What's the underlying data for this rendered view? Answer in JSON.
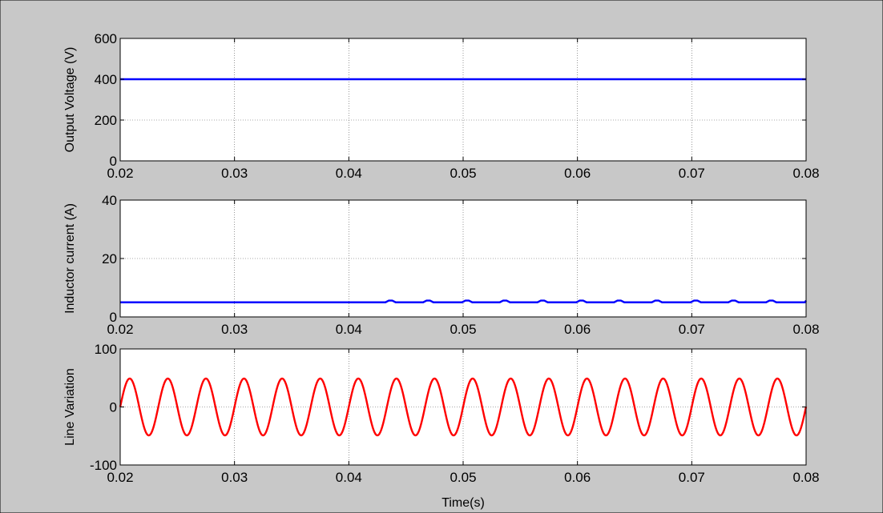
{
  "figure": {
    "background": "#c8c8c8",
    "axes_background": "#ffffff",
    "grid_color": "#555555"
  },
  "chart_data": [
    {
      "type": "line",
      "ylabel": "Output Voltage (V)",
      "xlabel": "",
      "xlim": [
        0.02,
        0.08
      ],
      "ylim": [
        0,
        600
      ],
      "x_ticks": [
        "0.02",
        "0.03",
        "0.04",
        "0.05",
        "0.06",
        "0.07",
        "0.08"
      ],
      "y_ticks": [
        "0",
        "200",
        "400",
        "600"
      ],
      "grid": true,
      "series": [
        {
          "color": "#0000ff",
          "x": [
            0.02,
            0.08
          ],
          "y": [
            400,
            400
          ]
        }
      ]
    },
    {
      "type": "line",
      "ylabel": "Inductor current (A)",
      "xlabel": "",
      "xlim": [
        0.02,
        0.08
      ],
      "ylim": [
        0,
        40
      ],
      "x_ticks": [
        "0.02",
        "0.03",
        "0.04",
        "0.05",
        "0.06",
        "0.07",
        "0.08"
      ],
      "y_ticks": [
        "0",
        "20",
        "40"
      ],
      "grid": true,
      "series": [
        {
          "color": "#0000ff",
          "x": [
            0.02,
            0.0404,
            0.0406,
            0.0432,
            0.0435,
            0.0438,
            0.0441,
            0.0465,
            0.0468,
            0.0471,
            0.0474,
            0.0499,
            0.0502,
            0.0505,
            0.0508,
            0.0532,
            0.0535,
            0.0538,
            0.0541,
            0.0565,
            0.0568,
            0.0571,
            0.0574,
            0.0599,
            0.0602,
            0.0605,
            0.0608,
            0.0632,
            0.0635,
            0.0638,
            0.0641,
            0.0665,
            0.0668,
            0.0671,
            0.0674,
            0.0699,
            0.0702,
            0.0705,
            0.0708,
            0.0732,
            0.0735,
            0.0738,
            0.0741,
            0.0765,
            0.0768,
            0.0771,
            0.0774,
            0.0799,
            0.08
          ],
          "y": [
            5.0,
            5.0,
            5.0,
            5.0,
            5.6,
            5.6,
            5.0,
            5.0,
            5.6,
            5.6,
            5.0,
            5.0,
            5.6,
            5.6,
            5.0,
            5.0,
            5.6,
            5.6,
            5.0,
            5.0,
            5.6,
            5.6,
            5.0,
            5.0,
            5.6,
            5.6,
            5.0,
            5.0,
            5.6,
            5.6,
            5.0,
            5.0,
            5.6,
            5.6,
            5.0,
            5.0,
            5.6,
            5.6,
            5.0,
            5.0,
            5.6,
            5.6,
            5.0,
            5.0,
            5.6,
            5.6,
            5.0,
            5.0,
            5.6
          ]
        }
      ]
    },
    {
      "type": "line",
      "ylabel": "Line Variation",
      "xlabel": "Time(s)",
      "xlim": [
        0.02,
        0.08
      ],
      "ylim": [
        -100,
        100
      ],
      "x_ticks": [
        "0.02",
        "0.03",
        "0.04",
        "0.05",
        "0.06",
        "0.07",
        "0.08"
      ],
      "y_ticks": [
        "-100",
        "0",
        "100"
      ],
      "grid": true,
      "series": [
        {
          "color": "#ff0000",
          "kind": "sine",
          "amplitude": 49,
          "period": 0.003333,
          "phase_x0": 0.02,
          "x_start": 0.02,
          "x_end": 0.08
        }
      ]
    }
  ]
}
